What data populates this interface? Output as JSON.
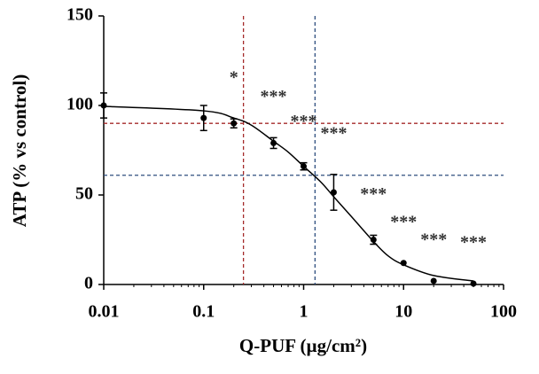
{
  "chart_data": {
    "type": "scatter",
    "x_label": "Q-PUF (µg/cm²)",
    "y_label": "ATP (% vs control)",
    "x_scale": "log",
    "xlim": [
      0.01,
      100
    ],
    "xticks": [
      0.01,
      0.1,
      1,
      10,
      100
    ],
    "ylim": [
      0,
      150
    ],
    "yticks": [
      0,
      50,
      100,
      150
    ],
    "series": [
      {
        "x": [
          0.01,
          0.1,
          0.2,
          0.5,
          1,
          2,
          5,
          10,
          20,
          50
        ],
        "values": [
          100,
          93,
          90,
          79,
          66,
          51.5,
          25,
          12,
          2,
          0.5
        ],
        "errors": [
          7,
          7,
          2.5,
          3,
          2,
          10,
          2.5,
          0,
          0,
          0
        ],
        "color": "#000000"
      }
    ],
    "fit": {
      "x": [
        0.01,
        0.1,
        0.2,
        0.3,
        0.5,
        0.7,
        1,
        1.5,
        2,
        3,
        5,
        7,
        10,
        20,
        50
      ],
      "values": [
        99.5,
        97,
        93,
        89,
        80,
        74,
        66,
        57,
        49,
        38,
        24,
        16,
        11,
        5,
        2
      ],
      "color": "#000000"
    },
    "reference_lines": [
      {
        "x": 0.25,
        "y": 90,
        "color": "#a52a2a"
      },
      {
        "x": 1.3,
        "y": 61,
        "color": "#2f4f7f"
      }
    ],
    "annotations": [
      {
        "text": "*",
        "x": 0.2
      },
      {
        "text": "***",
        "x": 0.5
      },
      {
        "text": "***",
        "x": 1
      },
      {
        "text": "***",
        "x": 2
      },
      {
        "text": "***",
        "x": 5
      },
      {
        "text": "***",
        "x": 10
      },
      {
        "text": "***",
        "x": 20
      },
      {
        "text": "***",
        "x": 50
      }
    ]
  }
}
